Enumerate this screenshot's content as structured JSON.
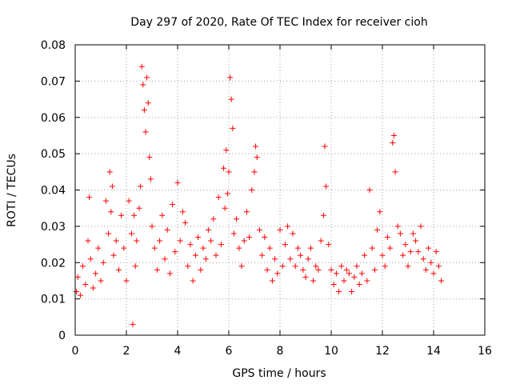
{
  "chart_data": {
    "type": "scatter",
    "title": "Day 297 of 2020, Rate Of TEC Index for receiver cioh",
    "xlabel": "GPS time / hours",
    "ylabel": "ROTI / TECUs",
    "xlim": [
      0,
      16
    ],
    "ylim": [
      0,
      0.08
    ],
    "xticks": [
      0,
      2,
      4,
      6,
      8,
      10,
      12,
      14,
      16
    ],
    "yticks": [
      0,
      0.01,
      0.02,
      0.03,
      0.04,
      0.05,
      0.06,
      0.07,
      0.08
    ],
    "xtick_labels": [
      "0",
      "2",
      "4",
      "6",
      "8",
      "10",
      "12",
      "14",
      "16"
    ],
    "ytick_labels": [
      "0",
      "0.01",
      "0.02",
      "0.03",
      "0.04",
      "0.05",
      "0.06",
      "0.07",
      "0.08"
    ],
    "grid": true,
    "marker": "+",
    "color": "#ff0000",
    "series": [
      {
        "name": "ROTI",
        "x": [
          0.05,
          0.1,
          0.2,
          0.3,
          0.4,
          0.5,
          0.55,
          0.6,
          0.7,
          0.8,
          0.9,
          1.0,
          1.1,
          1.2,
          1.3,
          1.35,
          1.4,
          1.45,
          1.5,
          1.6,
          1.7,
          1.8,
          1.9,
          2.0,
          2.1,
          2.2,
          2.25,
          2.3,
          2.35,
          2.4,
          2.5,
          2.55,
          2.6,
          2.65,
          2.7,
          2.75,
          2.8,
          2.85,
          2.9,
          2.95,
          3.0,
          3.1,
          3.2,
          3.3,
          3.4,
          3.5,
          3.6,
          3.7,
          3.8,
          3.9,
          4.0,
          4.1,
          4.2,
          4.3,
          4.4,
          4.5,
          4.6,
          4.7,
          4.8,
          4.9,
          5.0,
          5.1,
          5.2,
          5.3,
          5.4,
          5.5,
          5.6,
          5.7,
          5.8,
          5.85,
          5.9,
          5.95,
          6.0,
          6.05,
          6.1,
          6.15,
          6.2,
          6.3,
          6.4,
          6.5,
          6.6,
          6.7,
          6.8,
          6.9,
          7.0,
          7.05,
          7.1,
          7.2,
          7.3,
          7.4,
          7.5,
          7.6,
          7.7,
          7.8,
          7.9,
          8.0,
          8.1,
          8.2,
          8.3,
          8.4,
          8.5,
          8.6,
          8.7,
          8.8,
          8.9,
          9.0,
          9.1,
          9.2,
          9.3,
          9.4,
          9.5,
          9.6,
          9.7,
          9.75,
          9.8,
          9.9,
          10.0,
          10.1,
          10.2,
          10.3,
          10.4,
          10.5,
          10.6,
          10.7,
          10.8,
          10.9,
          11.0,
          11.1,
          11.2,
          11.3,
          11.4,
          11.5,
          11.6,
          11.7,
          11.8,
          11.9,
          12.0,
          12.1,
          12.2,
          12.3,
          12.4,
          12.45,
          12.5,
          12.6,
          12.7,
          12.8,
          12.9,
          13.0,
          13.1,
          13.2,
          13.3,
          13.4,
          13.5,
          13.6,
          13.7,
          13.8,
          13.9,
          14.0,
          14.1,
          14.2,
          14.3
        ],
        "y": [
          0.012,
          0.016,
          0.011,
          0.019,
          0.014,
          0.026,
          0.038,
          0.021,
          0.013,
          0.017,
          0.024,
          0.015,
          0.02,
          0.037,
          0.028,
          0.045,
          0.034,
          0.041,
          0.022,
          0.026,
          0.018,
          0.033,
          0.024,
          0.015,
          0.037,
          0.028,
          0.003,
          0.033,
          0.019,
          0.026,
          0.035,
          0.041,
          0.074,
          0.069,
          0.062,
          0.056,
          0.071,
          0.064,
          0.049,
          0.043,
          0.03,
          0.024,
          0.018,
          0.026,
          0.033,
          0.021,
          0.029,
          0.017,
          0.036,
          0.023,
          0.042,
          0.026,
          0.034,
          0.031,
          0.019,
          0.025,
          0.015,
          0.022,
          0.027,
          0.018,
          0.024,
          0.021,
          0.029,
          0.026,
          0.032,
          0.022,
          0.038,
          0.025,
          0.046,
          0.035,
          0.051,
          0.039,
          0.045,
          0.071,
          0.065,
          0.057,
          0.028,
          0.032,
          0.024,
          0.019,
          0.026,
          0.034,
          0.027,
          0.04,
          0.045,
          0.052,
          0.049,
          0.029,
          0.022,
          0.027,
          0.018,
          0.024,
          0.015,
          0.021,
          0.017,
          0.029,
          0.019,
          0.025,
          0.03,
          0.021,
          0.028,
          0.019,
          0.024,
          0.022,
          0.018,
          0.016,
          0.021,
          0.024,
          0.015,
          0.019,
          0.018,
          0.026,
          0.033,
          0.052,
          0.041,
          0.025,
          0.018,
          0.014,
          0.017,
          0.012,
          0.019,
          0.015,
          0.018,
          0.017,
          0.012,
          0.016,
          0.019,
          0.014,
          0.017,
          0.022,
          0.015,
          0.04,
          0.024,
          0.018,
          0.029,
          0.034,
          0.022,
          0.019,
          0.027,
          0.024,
          0.053,
          0.055,
          0.045,
          0.03,
          0.028,
          0.022,
          0.025,
          0.019,
          0.023,
          0.028,
          0.026,
          0.023,
          0.03,
          0.021,
          0.018,
          0.024,
          0.02,
          0.017,
          0.023,
          0.019,
          0.015
        ]
      }
    ]
  }
}
